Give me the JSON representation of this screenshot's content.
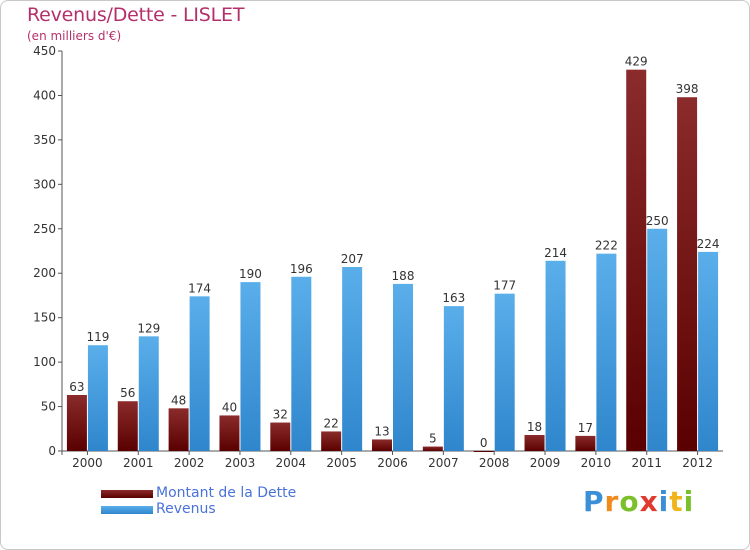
{
  "header": {
    "title": "Revenus/Dette - LISLET",
    "subtitle": "(en milliers d'€)"
  },
  "legend": {
    "items": [
      {
        "label": "Montant de la Dette",
        "color": "#6b0a0a"
      },
      {
        "label": "Revenus",
        "color": "#4aa3e6"
      }
    ]
  },
  "brand": {
    "text": "Proxiti",
    "letters": [
      {
        "ch": "P",
        "color": "#3a8fd6"
      },
      {
        "ch": "r",
        "color": "#f08a1c"
      },
      {
        "ch": "o",
        "color": "#7bbf2a"
      },
      {
        "ch": "x",
        "color": "#e03a2e"
      },
      {
        "ch": "i",
        "color": "#3a8fd6"
      },
      {
        "ch": "t",
        "color": "#f0b51c"
      },
      {
        "ch": "i",
        "color": "#7bbf2a"
      }
    ]
  },
  "chart_data": {
    "type": "bar",
    "title": "Revenus/Dette - LISLET",
    "subtitle": "(en milliers d'€)",
    "categories": [
      "2000",
      "2001",
      "2002",
      "2003",
      "2004",
      "2005",
      "2006",
      "2007",
      "2008",
      "2009",
      "2010",
      "2011",
      "2012"
    ],
    "series": [
      {
        "name": "Montant de la Dette",
        "color": "#6b0a0a",
        "values": [
          63,
          56,
          48,
          40,
          32,
          22,
          13,
          5,
          0,
          18,
          17,
          429,
          398
        ]
      },
      {
        "name": "Revenus",
        "color": "#4aa3e6",
        "values": [
          119,
          129,
          174,
          190,
          196,
          207,
          188,
          163,
          177,
          214,
          222,
          250,
          224
        ]
      }
    ],
    "ylim": [
      0,
      450
    ],
    "yticks": [
      0,
      50,
      100,
      150,
      200,
      250,
      300,
      350,
      400,
      450
    ],
    "grid": false,
    "legend_position": "bottom-left"
  }
}
